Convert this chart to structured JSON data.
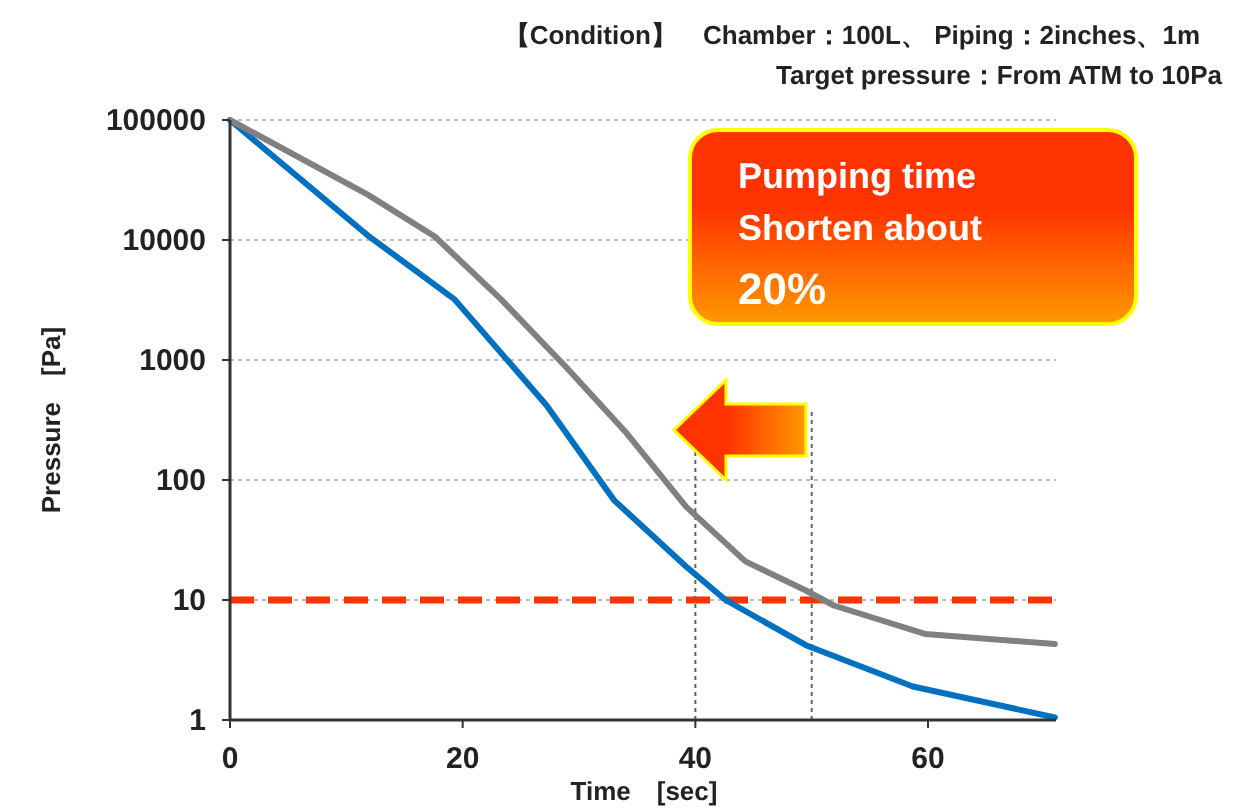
{
  "chart_data": {
    "type": "line",
    "title": "【Condition】　Chamber：100L、 Piping：2inches、1m",
    "subtitle": "Target pressure：From ATM to 10Pa",
    "xlabel": "Time　[sec]",
    "ylabel": "Pressure　[Pa]",
    "annotations": [
      "Pumping time",
      "Shorten about",
      "20%"
    ],
    "series": [
      {
        "color": "#0070c0",
        "x": [
          0,
          11.8,
          19.3,
          27.2,
          33,
          39.2,
          42.6,
          49.5,
          58.7,
          70.9
        ],
        "values": [
          100000,
          11000,
          3200,
          420,
          68,
          19,
          10,
          4.2,
          1.9,
          1.05
        ]
      },
      {
        "color": "#808080",
        "x": [
          0,
          11.8,
          17.6,
          23.3,
          28.9,
          34.1,
          39.2,
          44.3,
          49.5,
          51.9,
          59.8,
          70.9
        ],
        "values": [
          100000,
          24000,
          10700,
          3200,
          870,
          245,
          60,
          21,
          12,
          9,
          5.2,
          4.3
        ]
      }
    ],
    "ref_lines": [
      {
        "axis": "y",
        "value": 10,
        "color": "#ff3300",
        "line_style": "dashed"
      },
      {
        "axis": "x",
        "value": 40,
        "color": "#666666",
        "line_style": "dotted"
      },
      {
        "axis": "x",
        "value": 50,
        "color": "#666666",
        "line_style": "dotted"
      }
    ],
    "log": "y",
    "xlim": [
      0,
      71
    ],
    "xticks": [
      0,
      20,
      40,
      60
    ],
    "ylim": [
      1,
      100000
    ],
    "yticks": [
      1,
      10,
      100,
      1000,
      10000,
      100000
    ],
    "grid": "y",
    "line_style": "solid"
  }
}
